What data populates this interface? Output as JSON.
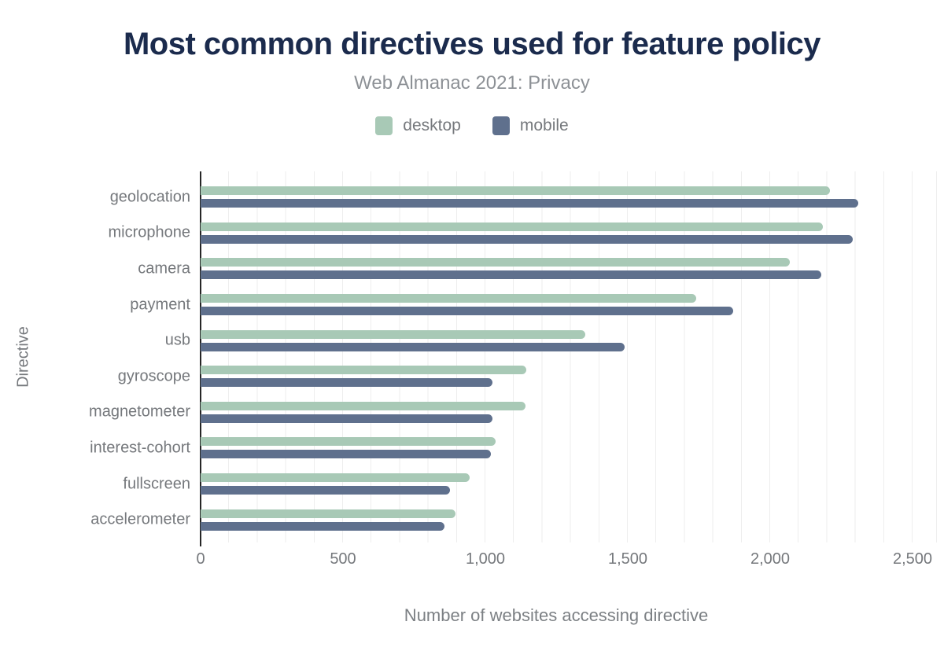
{
  "header": {
    "title": "Most common directives used for feature policy",
    "subtitle": "Web Almanac 2021: Privacy"
  },
  "legend": {
    "items": [
      {
        "label": "desktop",
        "color": "#a8c9b6"
      },
      {
        "label": "mobile",
        "color": "#5f708d"
      }
    ]
  },
  "axes": {
    "x_title": "Number of websites accessing directive",
    "y_title": "Directive",
    "x_tick_labels": [
      "0",
      "500",
      "1,000",
      "1,500",
      "2,000",
      "2,500"
    ]
  },
  "colors": {
    "title_text": "#1b2b4d",
    "muted_text": "#75787c",
    "desktop_bar": "#a8c9b6",
    "mobile_bar": "#5f708d",
    "gridline": "#eeeeee",
    "axis_line": "#262626"
  },
  "chart_data": {
    "type": "bar",
    "orientation": "horizontal",
    "title": "Most common directives used for feature policy",
    "subtitle": "Web Almanac 2021: Privacy",
    "xlabel": "Number of websites accessing directive",
    "ylabel": "Directive",
    "xlim": [
      0,
      2500
    ],
    "xticks": [
      0,
      500,
      1000,
      1500,
      2000,
      2500
    ],
    "grid": "vertical gridlines every 100 units",
    "legend_position": "top-center",
    "categories": [
      "geolocation",
      "microphone",
      "camera",
      "payment",
      "usb",
      "gyroscope",
      "magnetometer",
      "interest-cohort",
      "fullscreen",
      "accelerometer"
    ],
    "series": [
      {
        "name": "desktop",
        "color": "#a8c9b6",
        "values": [
          2210,
          2185,
          2070,
          1740,
          1350,
          1145,
          1140,
          1035,
          945,
          895
        ]
      },
      {
        "name": "mobile",
        "color": "#5f708d",
        "values": [
          2310,
          2290,
          2180,
          1870,
          1490,
          1025,
          1025,
          1020,
          875,
          855
        ]
      }
    ]
  }
}
